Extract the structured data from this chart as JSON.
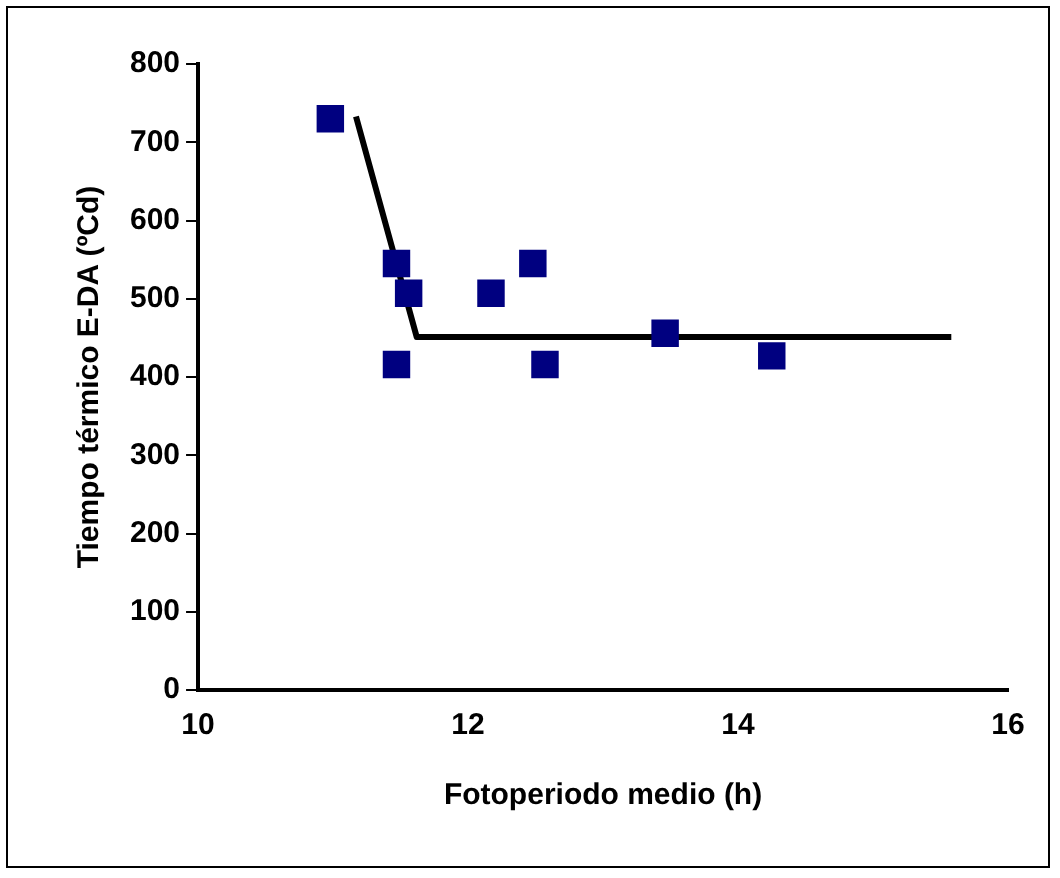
{
  "chart_data": {
    "type": "scatter",
    "xlabel": "Fotoperiodo medio (h)",
    "ylabel": "Tiempo térmico E-DA (ºCd)",
    "xlim": [
      10,
      16
    ],
    "xticks": [
      10,
      12,
      14,
      16
    ],
    "ylim": [
      0,
      800
    ],
    "yticks": [
      0,
      100,
      200,
      300,
      400,
      500,
      600,
      700,
      800
    ],
    "grid": false,
    "legend": false,
    "marker": "square",
    "series": [
      {
        "color": "#000080",
        "x": [
          10.98,
          11.47,
          11.56,
          11.47,
          12.17,
          12.48,
          12.57,
          13.46,
          14.25
        ],
        "values": [
          730,
          545,
          507,
          416,
          507,
          545,
          416,
          456,
          427
        ]
      },
      {
        "type": "line",
        "color": "#000000",
        "marker": "none",
        "line_style": "solid",
        "x": [
          11.17,
          11.62,
          15.58
        ],
        "values": [
          733,
          451,
          451
        ]
      }
    ]
  }
}
